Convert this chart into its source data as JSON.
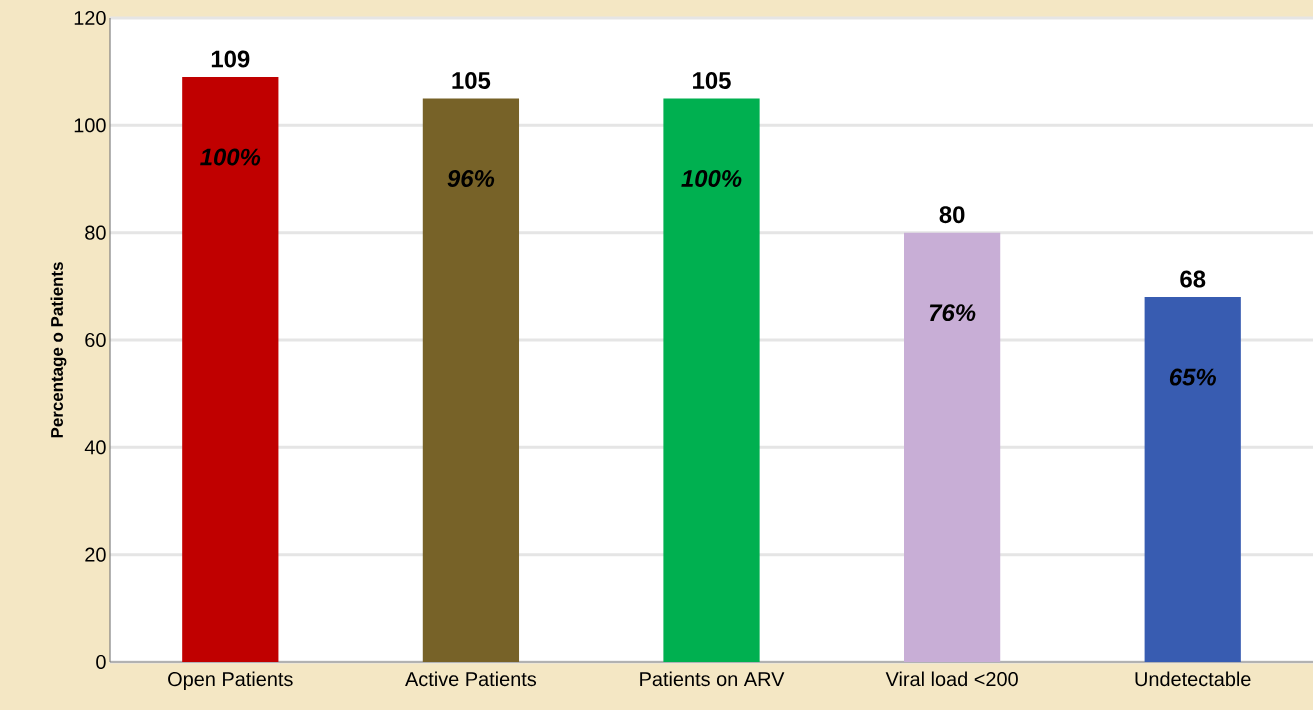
{
  "chart_data": {
    "type": "bar",
    "ylabel": "Percentage o Patients",
    "categories": [
      "Open Patients",
      "Active Patients",
      "Patients on ARV",
      "Viral load <200",
      "Undetectable"
    ],
    "values": [
      109,
      105,
      105,
      80,
      68
    ],
    "colors": [
      "#c00000",
      "#776228",
      "#00b050",
      "#c8aed6",
      "#385cb1"
    ],
    "ylim": [
      0,
      120
    ],
    "yticks": [
      0,
      20,
      40,
      60,
      80,
      100,
      120
    ],
    "grid": "y",
    "data_labels": true,
    "annotations": [
      "100%",
      "96%",
      "100%",
      "76%",
      "65%"
    ]
  }
}
